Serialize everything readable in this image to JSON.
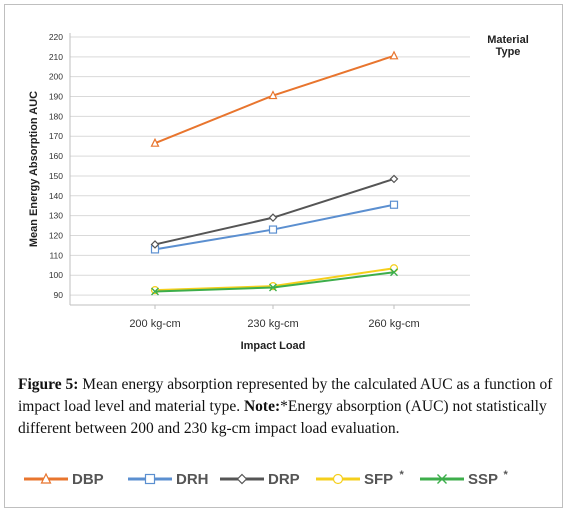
{
  "chart_data": {
    "type": "line",
    "categories": [
      "200 kg-cm",
      "230 kg-cm",
      "260 kg-cm"
    ],
    "xlabel": "Impact Load",
    "ylabel": "Mean Energy Absorption AUC",
    "ylim": [
      85,
      222
    ],
    "yticks": [
      90,
      100,
      110,
      120,
      130,
      140,
      150,
      160,
      170,
      180,
      190,
      200,
      210,
      220
    ],
    "grid": "horizontal",
    "legend_title": "Material Type",
    "series": [
      {
        "name": "DBP",
        "suffix": "",
        "color": "#E8752E",
        "marker": "triangle",
        "values": [
          166.5,
          190.5,
          210.5
        ]
      },
      {
        "name": "DRH",
        "suffix": "",
        "color": "#5B8FD0",
        "marker": "square",
        "values": [
          113,
          123,
          135.5
        ]
      },
      {
        "name": "DRP",
        "suffix": "",
        "color": "#555555",
        "marker": "diamond",
        "values": [
          115.5,
          129,
          148.5
        ]
      },
      {
        "name": "SFP",
        "suffix": "*",
        "color": "#F5CF1C",
        "marker": "circle",
        "values": [
          92.5,
          94.5,
          103.5
        ]
      },
      {
        "name": "SSP",
        "suffix": "*",
        "color": "#3DAE4B",
        "marker": "x",
        "values": [
          91.8,
          93.8,
          101.5
        ]
      }
    ]
  },
  "caption": {
    "label": "Figure 5:",
    "text": " Mean energy absorption represented by the calculated AUC as a function of impact load level and material type. ",
    "note_label": "Note:",
    "note_text": "*Energy absorption (AUC) not statistically different between 200 and 230 kg-cm impact load evaluation."
  }
}
